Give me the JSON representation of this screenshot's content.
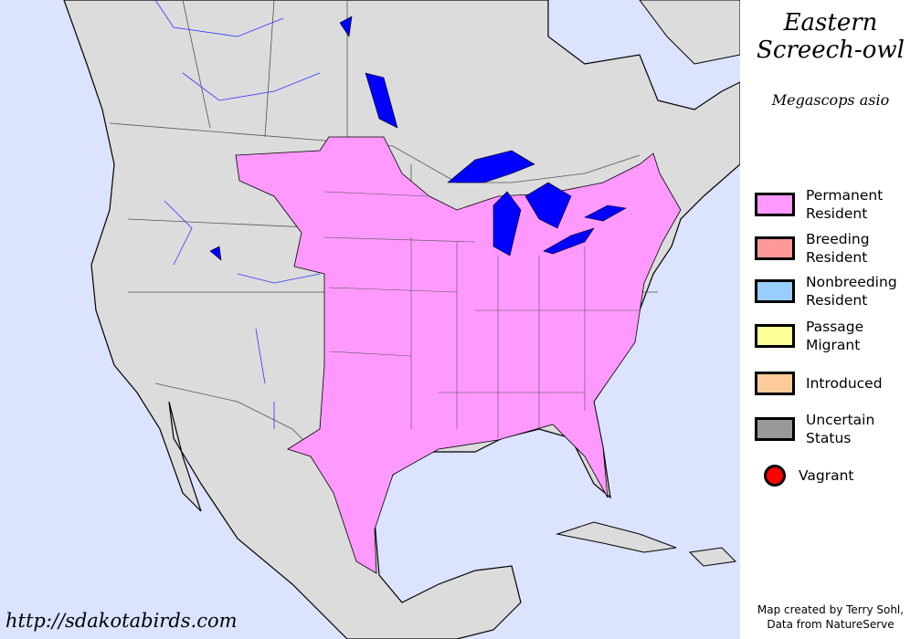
{
  "title_line1": "Eastern",
  "title_line2": "Screech-owl",
  "scientific_name": "Megascops asio",
  "legend": [
    {
      "label1": "Permanent",
      "label2": "Resident",
      "color": "#ff99ff"
    },
    {
      "label1": "Breeding",
      "label2": "Resident",
      "color": "#ff9999"
    },
    {
      "label1": "Nonbreeding",
      "label2": "Resident",
      "color": "#99ccff"
    },
    {
      "label1": "Passage",
      "label2": "Migrant",
      "color": "#ffff99"
    },
    {
      "label1": "Introduced",
      "label2": "",
      "color": "#ffcc99"
    },
    {
      "label1": "Uncertain",
      "label2": "Status",
      "color": "#999999"
    },
    {
      "label1": "Vagrant",
      "label2": "",
      "color": "#ff0000"
    }
  ],
  "credit_line1": "Map created by Terry Sohl,",
  "credit_line2": "Data from NatureServe",
  "website": "http://sdakotabirds.com",
  "colors": {
    "ocean": "#dbe3ff",
    "land": "#dcdcdc",
    "range": "#ff99ff",
    "lakes": "#0000ff",
    "rivers": "#3333ff"
  }
}
